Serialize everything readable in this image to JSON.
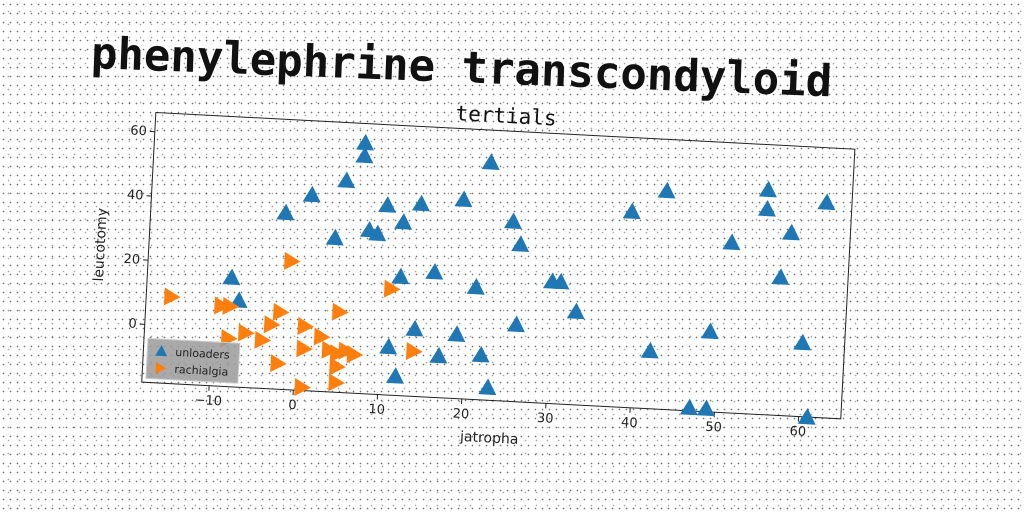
{
  "page": {
    "title": "phenylephrine transcondyloid"
  },
  "chart_data": {
    "type": "scatter",
    "title": "tertials",
    "xlabel": "jatropha",
    "ylabel": "leucotomy",
    "xlim": [
      -18,
      65
    ],
    "ylim": [
      -18,
      66
    ],
    "xticks": [
      -10,
      0,
      10,
      20,
      30,
      40,
      50,
      60
    ],
    "yticks": [
      0,
      20,
      40,
      60
    ],
    "legend_position": "lower-left",
    "grid": false,
    "series": [
      {
        "name": "unloaders",
        "color": "#1f77b4",
        "marker": "triangle-up",
        "points": [
          [
            7,
            60
          ],
          [
            7,
            56
          ],
          [
            5,
            48
          ],
          [
            -2,
            37
          ],
          [
            1,
            43
          ],
          [
            4,
            30
          ],
          [
            8,
            33
          ],
          [
            9,
            32
          ],
          [
            10,
            41
          ],
          [
            12,
            36
          ],
          [
            14,
            42
          ],
          [
            19,
            44
          ],
          [
            22,
            56
          ],
          [
            25,
            38
          ],
          [
            26,
            31
          ],
          [
            12,
            19
          ],
          [
            16,
            21
          ],
          [
            21,
            17
          ],
          [
            30,
            20
          ],
          [
            31,
            20
          ],
          [
            33,
            11
          ],
          [
            39,
            43
          ],
          [
            43,
            50
          ],
          [
            51,
            35
          ],
          [
            55,
            52
          ],
          [
            55,
            46
          ],
          [
            58,
            39
          ],
          [
            57,
            25
          ],
          [
            62,
            49
          ],
          [
            -8,
            16
          ],
          [
            -7,
            9
          ],
          [
            14,
            3
          ],
          [
            19,
            2
          ],
          [
            11,
            -3
          ],
          [
            17,
            -5
          ],
          [
            22,
            -4
          ],
          [
            12,
            -12
          ],
          [
            23,
            -14
          ],
          [
            26,
            6
          ],
          [
            42,
            0
          ],
          [
            49,
            7
          ],
          [
            47,
            -17
          ],
          [
            49,
            -17
          ],
          [
            60,
            5
          ],
          [
            61,
            -18
          ]
        ]
      },
      {
        "name": "rachialgia",
        "color": "#ff7f0e",
        "marker": "triangle-right",
        "points": [
          [
            -15,
            9
          ],
          [
            -9,
            7
          ],
          [
            -8,
            7
          ],
          [
            -8,
            -3
          ],
          [
            -6,
            -1
          ],
          [
            -4,
            -3
          ],
          [
            -3,
            2
          ],
          [
            -2,
            6
          ],
          [
            -1,
            22
          ],
          [
            1,
            2
          ],
          [
            1,
            -5
          ],
          [
            3,
            -1
          ],
          [
            4,
            -5
          ],
          [
            5,
            7
          ],
          [
            5,
            -6
          ],
          [
            6,
            -5
          ],
          [
            7,
            -6
          ],
          [
            5,
            -10
          ],
          [
            5,
            -15
          ],
          [
            -2,
            -10
          ],
          [
            1,
            -17
          ],
          [
            11,
            15
          ],
          [
            14,
            -4
          ]
        ]
      }
    ]
  }
}
